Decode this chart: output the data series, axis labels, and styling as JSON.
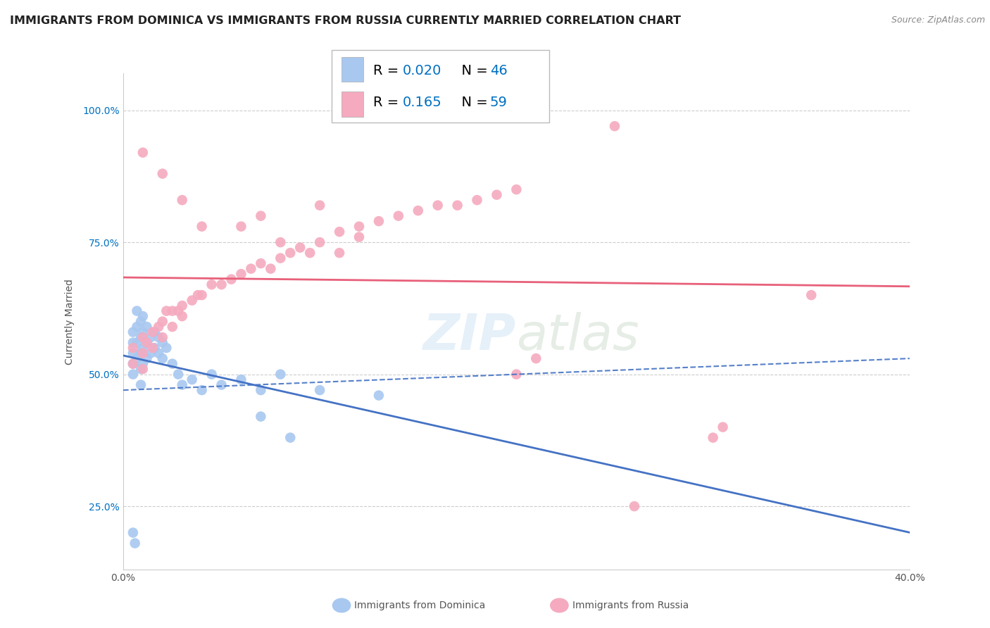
{
  "title": "IMMIGRANTS FROM DOMINICA VS IMMIGRANTS FROM RUSSIA CURRENTLY MARRIED CORRELATION CHART",
  "source": "Source: ZipAtlas.com",
  "ylabel": "Currently Married",
  "xlim": [
    0.0,
    0.4
  ],
  "ylim": [
    0.13,
    1.07
  ],
  "yticks": [
    0.25,
    0.5,
    0.75,
    1.0
  ],
  "ytick_labels": [
    "25.0%",
    "50.0%",
    "75.0%",
    "100.0%"
  ],
  "xtick_labels": [
    "0.0%",
    "",
    "",
    "",
    "40.0%"
  ],
  "dominica_color": "#A8C8F0",
  "russia_color": "#F5AABF",
  "dominica_line_color": "#4472C4",
  "russia_line_color": "#E8607A",
  "legend_blue": "#0070C0",
  "dominica_R": "0.020",
  "dominica_N": "46",
  "russia_R": "0.165",
  "russia_N": "59",
  "grid_color": "#CCCCCC",
  "background_color": "#FFFFFF",
  "title_fontsize": 11.5,
  "source_fontsize": 9,
  "tick_fontsize": 10,
  "legend_fontsize": 14,
  "dominica_x": [
    0.005,
    0.005,
    0.005,
    0.005,
    0.005,
    0.007,
    0.007,
    0.007,
    0.007,
    0.009,
    0.009,
    0.009,
    0.009,
    0.009,
    0.01,
    0.01,
    0.01,
    0.01,
    0.012,
    0.012,
    0.012,
    0.014,
    0.014,
    0.016,
    0.016,
    0.018,
    0.018,
    0.02,
    0.02,
    0.022,
    0.025,
    0.028,
    0.03,
    0.035,
    0.04,
    0.045,
    0.05,
    0.06,
    0.07,
    0.08,
    0.1,
    0.13,
    0.005,
    0.006,
    0.07,
    0.085
  ],
  "dominica_y": [
    0.58,
    0.56,
    0.54,
    0.52,
    0.5,
    0.62,
    0.59,
    0.56,
    0.53,
    0.6,
    0.57,
    0.54,
    0.51,
    0.48,
    0.61,
    0.58,
    0.55,
    0.52,
    0.59,
    0.56,
    0.53,
    0.57,
    0.54,
    0.58,
    0.55,
    0.57,
    0.54,
    0.56,
    0.53,
    0.55,
    0.52,
    0.5,
    0.48,
    0.49,
    0.47,
    0.5,
    0.48,
    0.49,
    0.47,
    0.5,
    0.47,
    0.46,
    0.2,
    0.18,
    0.42,
    0.38
  ],
  "russia_x": [
    0.005,
    0.005,
    0.01,
    0.01,
    0.01,
    0.012,
    0.015,
    0.015,
    0.018,
    0.02,
    0.02,
    0.022,
    0.025,
    0.025,
    0.028,
    0.03,
    0.03,
    0.035,
    0.038,
    0.04,
    0.045,
    0.05,
    0.055,
    0.06,
    0.065,
    0.07,
    0.075,
    0.08,
    0.085,
    0.09,
    0.095,
    0.1,
    0.11,
    0.12,
    0.13,
    0.14,
    0.15,
    0.16,
    0.17,
    0.18,
    0.19,
    0.2,
    0.3,
    0.305,
    0.06,
    0.07,
    0.08,
    0.1,
    0.11,
    0.12,
    0.01,
    0.02,
    0.03,
    0.04,
    0.2,
    0.21,
    0.25,
    0.26,
    0.35
  ],
  "russia_y": [
    0.55,
    0.52,
    0.57,
    0.54,
    0.51,
    0.56,
    0.58,
    0.55,
    0.59,
    0.6,
    0.57,
    0.62,
    0.62,
    0.59,
    0.62,
    0.63,
    0.61,
    0.64,
    0.65,
    0.65,
    0.67,
    0.67,
    0.68,
    0.69,
    0.7,
    0.71,
    0.7,
    0.72,
    0.73,
    0.74,
    0.73,
    0.75,
    0.77,
    0.78,
    0.79,
    0.8,
    0.81,
    0.82,
    0.82,
    0.83,
    0.84,
    0.85,
    0.38,
    0.4,
    0.78,
    0.8,
    0.75,
    0.82,
    0.73,
    0.76,
    0.92,
    0.88,
    0.83,
    0.78,
    0.5,
    0.53,
    0.97,
    0.25,
    0.65
  ]
}
